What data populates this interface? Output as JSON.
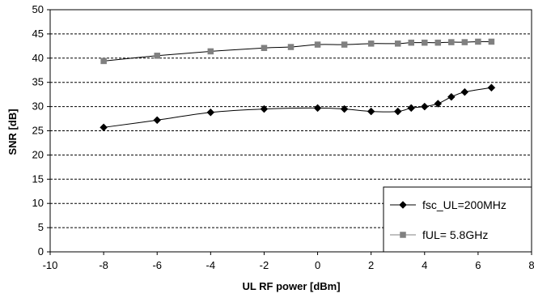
{
  "chart_data": {
    "type": "line",
    "title": "",
    "xlabel": "UL RF power [dBm]",
    "ylabel": "SNR [dB]",
    "xlim": [
      -10,
      8
    ],
    "ylim": [
      0,
      50
    ],
    "xticks": [
      -10,
      -8,
      -6,
      -4,
      -2,
      0,
      2,
      4,
      6,
      8
    ],
    "yticks": [
      0,
      5,
      10,
      15,
      20,
      25,
      30,
      35,
      40,
      45,
      50
    ],
    "grid": "horizontal dashed",
    "legend_position": "bottom-right",
    "series": [
      {
        "name": "fsc_UL=200MHz",
        "marker": "diamond",
        "color": "#000000",
        "x": [
          -8,
          -6,
          -4,
          -2,
          0,
          1,
          2,
          3,
          3.5,
          4,
          4.5,
          5,
          5.5,
          6.5
        ],
        "y": [
          25.7,
          27.2,
          28.8,
          29.5,
          29.7,
          29.5,
          29.0,
          29.0,
          29.7,
          30.0,
          30.6,
          32.0,
          33.0,
          33.9
        ]
      },
      {
        "name": "fUL= 5.8GHz",
        "marker": "square",
        "color": "#808080",
        "x": [
          -8,
          -6,
          -4,
          -2,
          -1,
          0,
          1,
          2,
          3,
          3.5,
          4,
          4.5,
          5,
          5.5,
          6,
          6.5
        ],
        "y": [
          39.4,
          40.5,
          41.4,
          42.1,
          42.3,
          42.8,
          42.8,
          43.0,
          43.0,
          43.2,
          43.2,
          43.2,
          43.3,
          43.3,
          43.4,
          43.4
        ]
      }
    ]
  }
}
